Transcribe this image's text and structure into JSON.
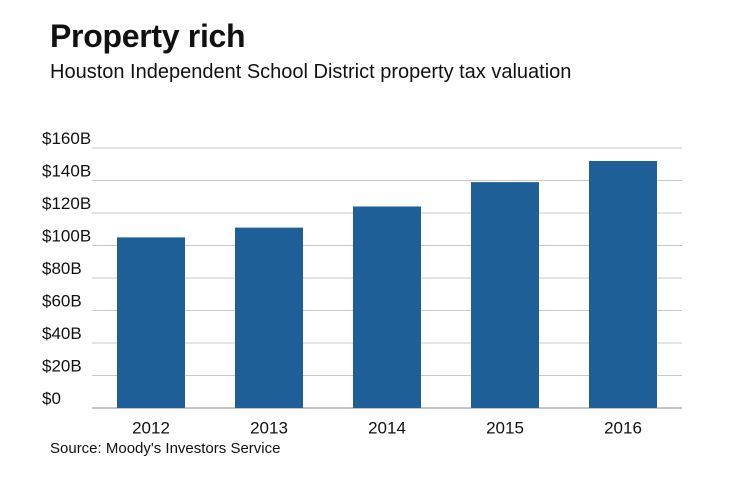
{
  "header": {
    "title": "Property rich",
    "subtitle": "Houston Independent School District property tax valuation"
  },
  "footer": {
    "source": "Source: Moody's Investors Service"
  },
  "colors": {
    "bar": "#1e5f97",
    "grid": "#c8c8c8",
    "axis": "#888888"
  },
  "chart_data": {
    "type": "bar",
    "title": "Property rich",
    "subtitle": "Houston Independent School District property tax valuation",
    "categories": [
      "2012",
      "2013",
      "2014",
      "2015",
      "2016"
    ],
    "values": [
      105,
      111,
      124,
      139,
      152
    ],
    "unit": "billions USD",
    "xlabel": "",
    "ylabel": "",
    "ylim": [
      0,
      160
    ],
    "yticks": [
      0,
      20,
      40,
      60,
      80,
      100,
      120,
      140,
      160
    ],
    "ytick_labels": [
      "$0",
      "$20B",
      "$40B",
      "$60B",
      "$80B",
      "$100B",
      "$120B",
      "$140B",
      "$160B"
    ],
    "grid": true,
    "legend": "none"
  }
}
